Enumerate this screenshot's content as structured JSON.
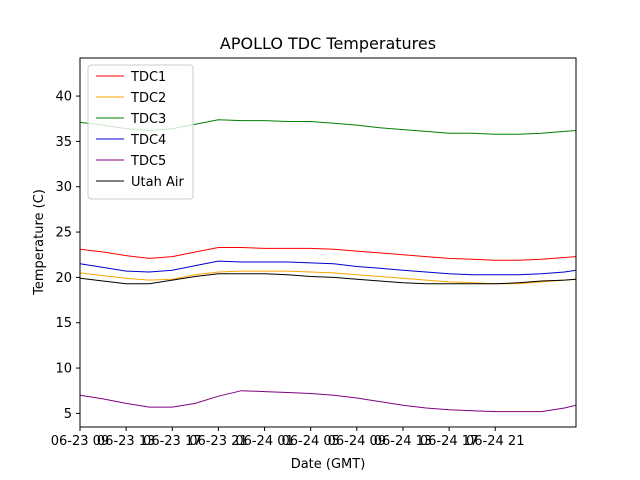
{
  "chart_data": {
    "type": "line",
    "title": "APOLLO TDC Temperatures",
    "xlabel": "Date (GMT)",
    "ylabel": "Temperature (C)",
    "xlim": [
      0,
      43
    ],
    "ylim": [
      3.5,
      44.2
    ],
    "x_ticks": [
      {
        "x": 0,
        "label": "06-23 09"
      },
      {
        "x": 4,
        "label": "06-23 13"
      },
      {
        "x": 8,
        "label": "06-23 17"
      },
      {
        "x": 12,
        "label": "06-23 21"
      },
      {
        "x": 16,
        "label": "06-24 01"
      },
      {
        "x": 20,
        "label": "06-24 05"
      },
      {
        "x": 24,
        "label": "06-24 09"
      },
      {
        "x": 28,
        "label": "06-24 13"
      },
      {
        "x": 32,
        "label": "06-24 17"
      },
      {
        "x": 36,
        "label": "06-24 21"
      }
    ],
    "y_ticks": [
      5,
      10,
      15,
      20,
      25,
      30,
      35,
      40
    ],
    "legend_position": "upper-left",
    "x": [
      0,
      2,
      4,
      6,
      8,
      10,
      12,
      14,
      16,
      18,
      20,
      22,
      24,
      26,
      28,
      30,
      32,
      34,
      36,
      38,
      40,
      42,
      43
    ],
    "series": [
      {
        "name": "TDC1",
        "color": "#ff0000",
        "values": [
          23.1,
          22.8,
          22.4,
          22.1,
          22.3,
          22.8,
          23.3,
          23.3,
          23.2,
          23.2,
          23.2,
          23.1,
          22.9,
          22.7,
          22.5,
          22.3,
          22.1,
          22.0,
          21.9,
          21.9,
          22.0,
          22.2,
          22.3
        ]
      },
      {
        "name": "TDC2",
        "color": "#ffa500",
        "values": [
          20.5,
          20.2,
          19.9,
          19.7,
          19.8,
          20.3,
          20.6,
          20.7,
          20.7,
          20.7,
          20.6,
          20.5,
          20.3,
          20.1,
          19.9,
          19.7,
          19.5,
          19.4,
          19.3,
          19.3,
          19.5,
          19.7,
          19.8
        ]
      },
      {
        "name": "TDC3",
        "color": "#008000",
        "values": [
          37.1,
          36.8,
          36.4,
          36.2,
          36.4,
          36.9,
          37.4,
          37.3,
          37.3,
          37.2,
          37.2,
          37.0,
          36.8,
          36.5,
          36.3,
          36.1,
          35.9,
          35.9,
          35.8,
          35.8,
          35.9,
          36.1,
          36.2
        ]
      },
      {
        "name": "TDC4",
        "color": "#0000cc",
        "values": [
          21.5,
          21.1,
          20.7,
          20.6,
          20.8,
          21.3,
          21.8,
          21.7,
          21.7,
          21.7,
          21.6,
          21.5,
          21.2,
          21.0,
          20.8,
          20.6,
          20.4,
          20.3,
          20.3,
          20.3,
          20.4,
          20.6,
          20.8
        ]
      },
      {
        "name": "TDC5",
        "color": "#800080",
        "values": [
          7.0,
          6.6,
          6.1,
          5.7,
          5.7,
          6.1,
          6.9,
          7.5,
          7.4,
          7.3,
          7.2,
          7.0,
          6.7,
          6.3,
          5.9,
          5.6,
          5.4,
          5.3,
          5.2,
          5.2,
          5.2,
          5.6,
          5.9
        ]
      },
      {
        "name": "Utah Air",
        "color": "#000000",
        "values": [
          19.9,
          19.6,
          19.3,
          19.3,
          19.7,
          20.1,
          20.4,
          20.4,
          20.4,
          20.3,
          20.1,
          20.0,
          19.8,
          19.6,
          19.4,
          19.3,
          19.3,
          19.3,
          19.3,
          19.4,
          19.6,
          19.7,
          19.8
        ]
      }
    ]
  }
}
